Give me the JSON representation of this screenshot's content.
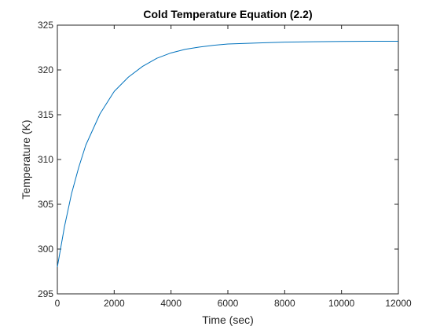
{
  "chart_data": {
    "type": "line",
    "title": "Cold Temperature Equation (2.2)",
    "xlabel": "Time (sec)",
    "ylabel": "Temperature (K)",
    "xlim": [
      0,
      12000
    ],
    "ylim": [
      295,
      325
    ],
    "xticks": [
      0,
      2000,
      4000,
      6000,
      8000,
      10000,
      12000
    ],
    "xtick_labels": [
      "0",
      "2000",
      "4000",
      "6000",
      "8000",
      "10000",
      "12000"
    ],
    "yticks": [
      295,
      300,
      305,
      310,
      315,
      320,
      325
    ],
    "ytick_labels": [
      "295",
      "300",
      "305",
      "310",
      "315",
      "320",
      "325"
    ],
    "grid": false,
    "box": true,
    "series": [
      {
        "color": "#0072BD",
        "x": [
          0,
          250,
          500,
          750,
          1000,
          1500,
          2000,
          2500,
          3000,
          3500,
          4000,
          4500,
          5000,
          5500,
          6000,
          7000,
          8000,
          9000,
          10000,
          11000,
          12000
        ],
        "y": [
          298.0,
          302.5,
          306.2,
          309.1,
          311.6,
          315.1,
          317.6,
          319.2,
          320.4,
          321.3,
          321.9,
          322.3,
          322.55,
          322.75,
          322.9,
          323.0,
          323.1,
          323.15,
          323.18,
          323.2,
          323.2
        ]
      }
    ]
  }
}
